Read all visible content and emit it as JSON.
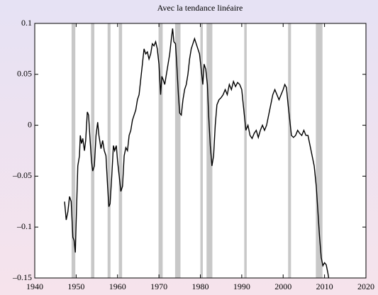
{
  "chart_data": {
    "type": "line",
    "title": "Avec la tendance linéaire",
    "color": "#000000",
    "shade_color": "#c8c8c8",
    "xlim": [
      1940,
      2020
    ],
    "xticks": [
      1940,
      1950,
      1960,
      1970,
      1980,
      1990,
      2000,
      2010,
      2020
    ],
    "ylim": [
      -0.15,
      0.1
    ],
    "yticks": [
      {
        "value": -0.15,
        "label": "–0.15"
      },
      {
        "value": -0.1,
        "label": "–0.1"
      },
      {
        "value": -0.05,
        "label": "–0.05"
      },
      0,
      0.05,
      0.1
    ],
    "shaded_ranges": [
      [
        1948.9,
        1949.8
      ],
      [
        1953.6,
        1954.4
      ],
      [
        1957.6,
        1958.3
      ],
      [
        1960.3,
        1961.1
      ],
      [
        1969.9,
        1970.9
      ],
      [
        1973.9,
        1975.2
      ],
      [
        1980.0,
        1980.6
      ],
      [
        1981.5,
        1982.9
      ],
      [
        1990.6,
        1991.2
      ],
      [
        2001.2,
        2001.9
      ],
      [
        2007.9,
        2009.5
      ]
    ],
    "x": [
      1947.2,
      1947.6,
      1948.0,
      1948.4,
      1948.8,
      1949.2,
      1949.5,
      1949.8,
      1950.0,
      1950.4,
      1950.8,
      1951.0,
      1951.3,
      1951.6,
      1952.0,
      1952.3,
      1952.7,
      1953.0,
      1953.3,
      1953.7,
      1954.0,
      1954.4,
      1954.8,
      1955.2,
      1955.5,
      1956.0,
      1956.4,
      1956.8,
      1957.2,
      1957.6,
      1957.9,
      1958.2,
      1958.6,
      1959.0,
      1959.3,
      1959.7,
      1960.0,
      1960.4,
      1960.8,
      1961.2,
      1961.6,
      1962.0,
      1962.4,
      1962.8,
      1963.2,
      1963.6,
      1964.0,
      1964.4,
      1964.8,
      1965.2,
      1965.6,
      1966.0,
      1966.4,
      1966.8,
      1967.2,
      1967.6,
      1968.0,
      1968.4,
      1968.8,
      1969.2,
      1969.6,
      1970.0,
      1970.4,
      1970.7,
      1971.0,
      1971.4,
      1971.8,
      1972.2,
      1972.6,
      1973.0,
      1973.3,
      1973.6,
      1974.0,
      1974.3,
      1974.7,
      1975.0,
      1975.4,
      1975.8,
      1976.2,
      1976.6,
      1977.0,
      1977.4,
      1977.8,
      1978.2,
      1978.6,
      1979.0,
      1979.4,
      1979.8,
      1980.2,
      1980.6,
      1980.9,
      1981.3,
      1981.7,
      1982.0,
      1982.4,
      1982.8,
      1983.2,
      1983.6,
      1984.0,
      1984.5,
      1985.0,
      1985.5,
      1986.0,
      1986.5,
      1987.0,
      1987.5,
      1988.0,
      1988.5,
      1989.0,
      1989.5,
      1990.0,
      1990.5,
      1991.0,
      1991.5,
      1992.0,
      1992.5,
      1993.0,
      1993.5,
      1994.0,
      1994.5,
      1995.0,
      1995.5,
      1996.0,
      1996.5,
      1997.0,
      1997.5,
      1998.0,
      1998.5,
      1999.0,
      1999.5,
      2000.0,
      2000.4,
      2000.8,
      2001.2,
      2001.6,
      2002.0,
      2002.5,
      2003.0,
      2003.5,
      2004.0,
      2004.5,
      2005.0,
      2005.5,
      2006.0,
      2006.5,
      2007.0,
      2007.5,
      2008.0,
      2008.4,
      2008.8,
      2009.2,
      2009.6,
      2010.0,
      2010.4,
      2010.8,
      2011.0
    ],
    "values": [
      -0.075,
      -0.093,
      -0.085,
      -0.07,
      -0.075,
      -0.11,
      -0.113,
      -0.125,
      -0.095,
      -0.04,
      -0.03,
      -0.01,
      -0.018,
      -0.013,
      -0.025,
      -0.015,
      0.013,
      0.01,
      -0.01,
      -0.035,
      -0.045,
      -0.04,
      -0.01,
      0.003,
      -0.01,
      -0.023,
      -0.015,
      -0.025,
      -0.03,
      -0.06,
      -0.08,
      -0.077,
      -0.05,
      -0.02,
      -0.025,
      -0.02,
      -0.035,
      -0.05,
      -0.065,
      -0.06,
      -0.03,
      -0.022,
      -0.025,
      -0.01,
      -0.005,
      0.005,
      0.01,
      0.015,
      0.025,
      0.03,
      0.045,
      0.06,
      0.075,
      0.07,
      0.072,
      0.065,
      0.07,
      0.08,
      0.078,
      0.082,
      0.075,
      0.06,
      0.03,
      0.048,
      0.045,
      0.04,
      0.05,
      0.06,
      0.07,
      0.085,
      0.095,
      0.082,
      0.08,
      0.06,
      0.03,
      0.012,
      0.01,
      0.025,
      0.035,
      0.04,
      0.05,
      0.065,
      0.075,
      0.08,
      0.085,
      0.08,
      0.075,
      0.07,
      0.055,
      0.04,
      0.06,
      0.055,
      0.04,
      0.01,
      -0.02,
      -0.04,
      -0.03,
      0.0,
      0.02,
      0.025,
      0.027,
      0.03,
      0.035,
      0.03,
      0.04,
      0.035,
      0.043,
      0.038,
      0.042,
      0.04,
      0.035,
      0.015,
      -0.005,
      0.0,
      -0.01,
      -0.013,
      -0.008,
      -0.005,
      -0.012,
      -0.005,
      0.0,
      -0.005,
      0.0,
      0.01,
      0.02,
      0.03,
      0.035,
      0.03,
      0.025,
      0.03,
      0.035,
      0.04,
      0.037,
      0.02,
      0.005,
      -0.01,
      -0.012,
      -0.01,
      -0.005,
      -0.008,
      -0.01,
      -0.005,
      -0.01,
      -0.01,
      -0.02,
      -0.03,
      -0.04,
      -0.06,
      -0.085,
      -0.11,
      -0.13,
      -0.138,
      -0.135,
      -0.137,
      -0.145,
      -0.15
    ]
  }
}
